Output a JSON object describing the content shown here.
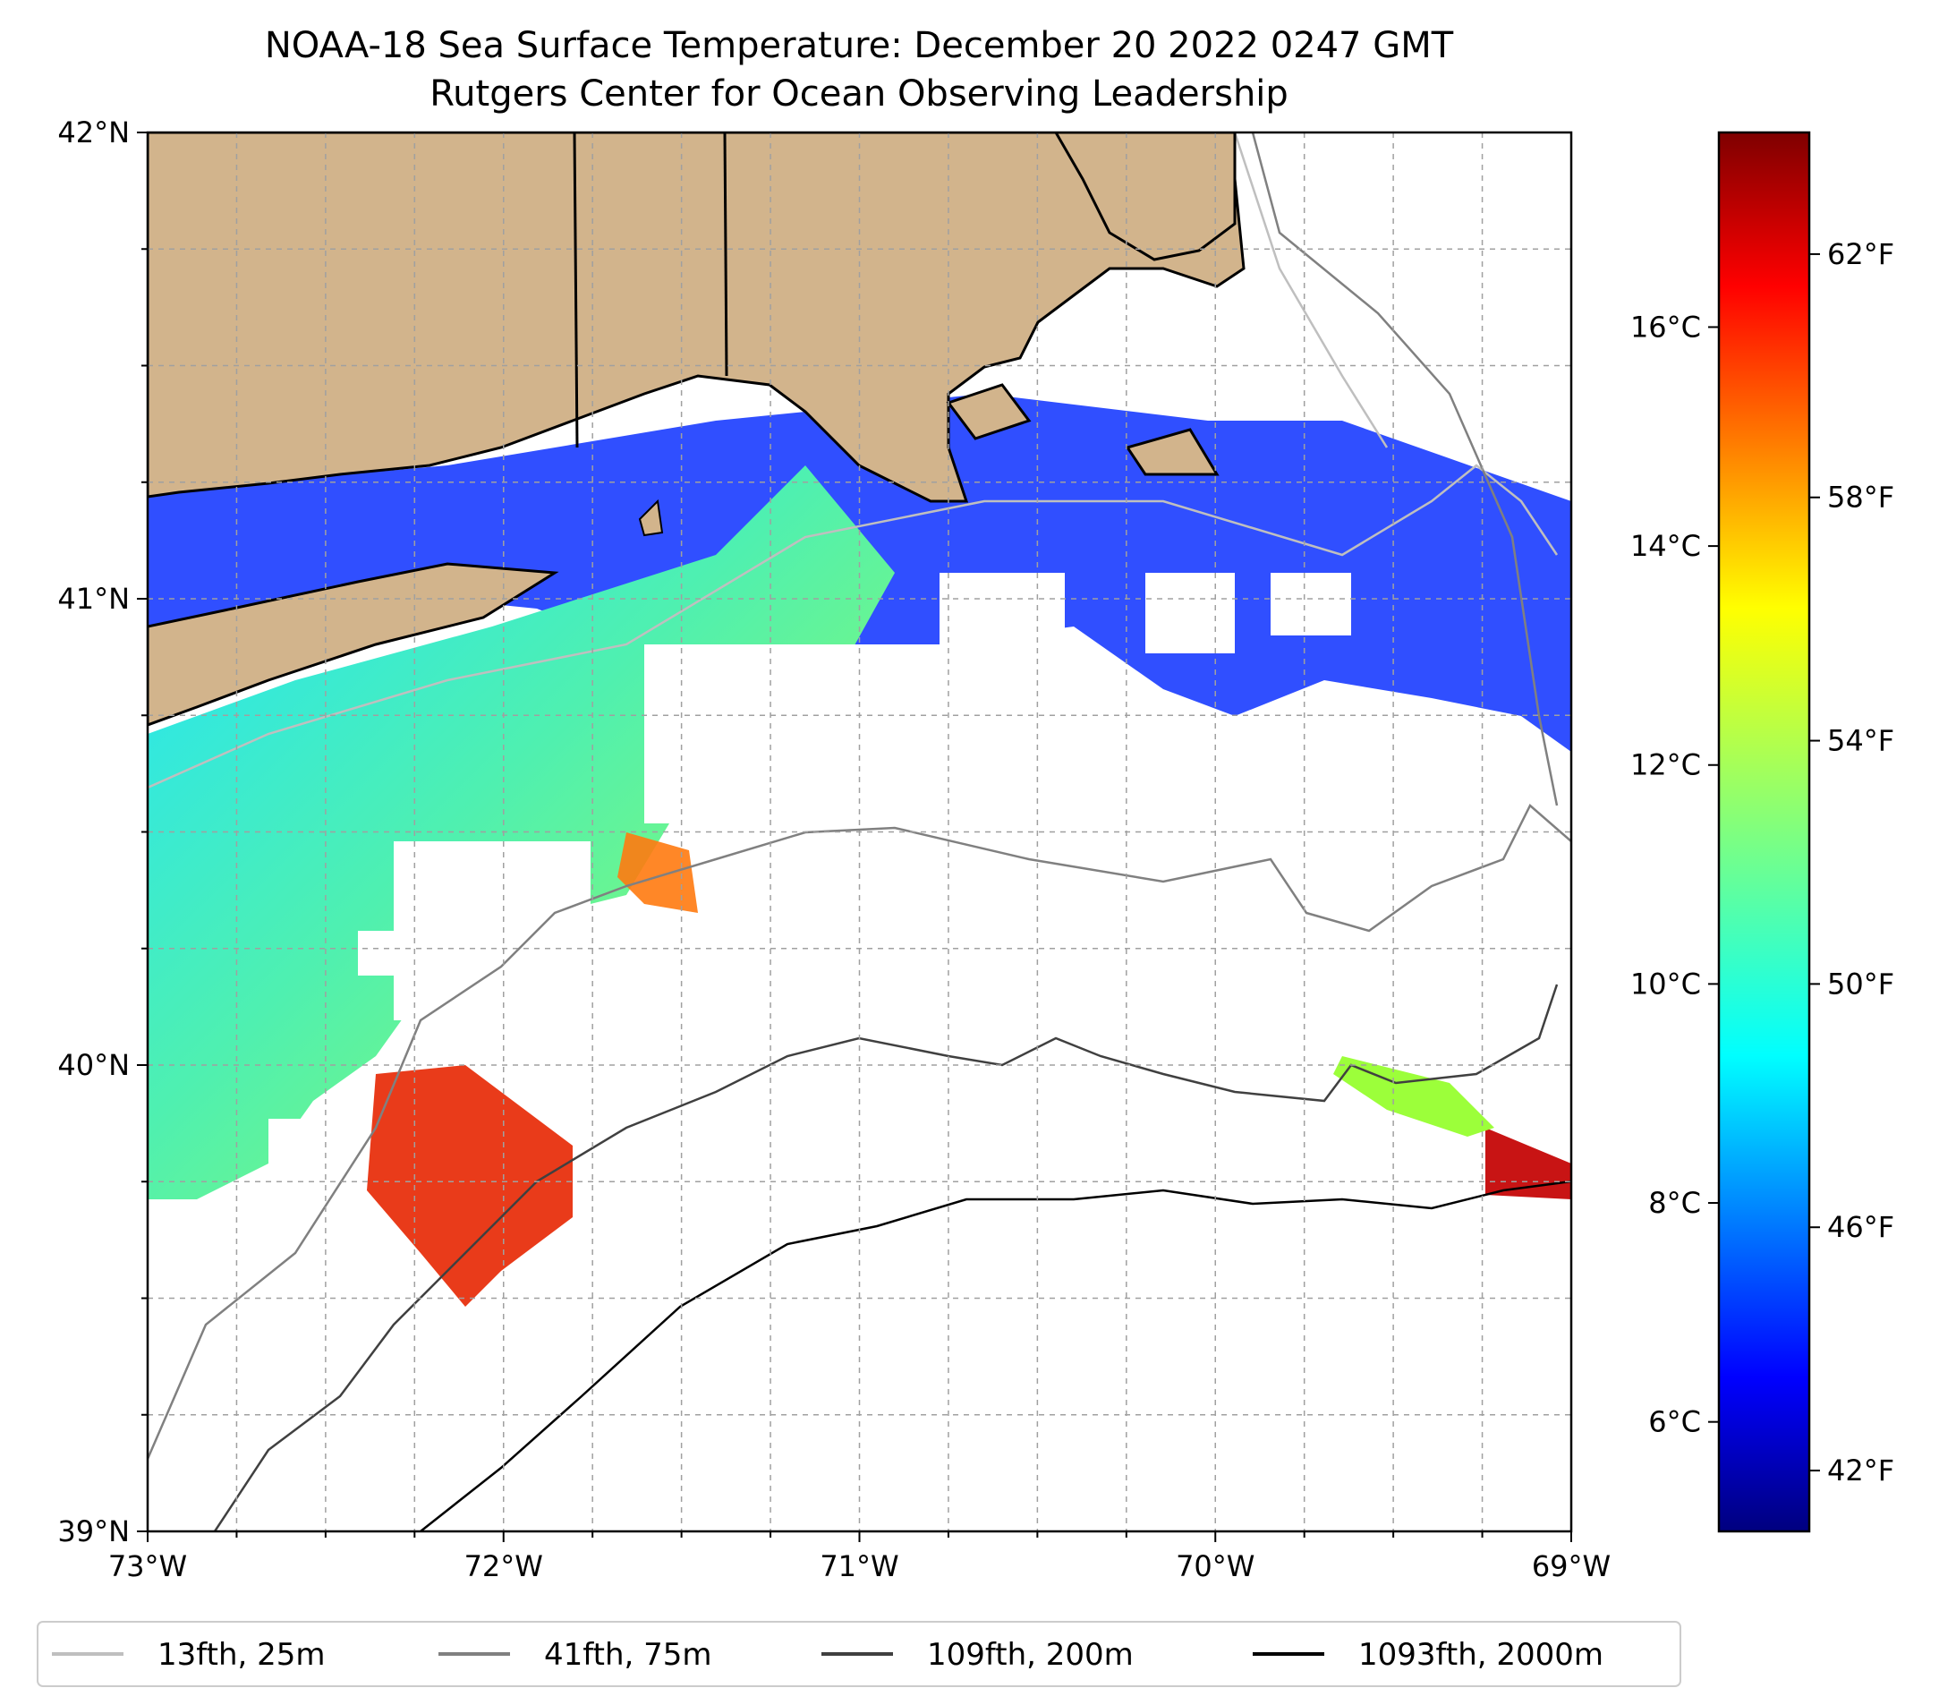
{
  "title": {
    "line1": "NOAA-18 Sea Surface Temperature: December 20 2022 0247 GMT",
    "line2": "Rutgers Center for Ocean Observing Leadership"
  },
  "map": {
    "lon_range": [
      -73,
      -69
    ],
    "lat_range": [
      39,
      42
    ],
    "x_ticks": [
      "73°W",
      "72°W",
      "71°W",
      "70°W",
      "69°W"
    ],
    "y_ticks": [
      "42°N",
      "41°N",
      "40°N",
      "39°N"
    ],
    "gridlines": true,
    "land_color": "#d2b48c",
    "ocean_missing_color": "#ffffff"
  },
  "colorbar": {
    "colormap": "jet",
    "range_f": [
      41,
      64
    ],
    "celsius_ticks": [
      "16°C",
      "14°C",
      "12°C",
      "10°C",
      "8°C",
      "6°C"
    ],
    "fahrenheit_ticks": [
      "62°F",
      "58°F",
      "54°F",
      "50°F",
      "46°F",
      "42°F"
    ]
  },
  "legend": {
    "placement": "bottom",
    "items": [
      {
        "label": "13fth, 25m",
        "color": "#bfbfbf"
      },
      {
        "label": "41fth, 75m",
        "color": "#808080"
      },
      {
        "label": "109fth, 200m",
        "color": "#404040"
      },
      {
        "label": "1093fth, 2000m",
        "color": "#000000"
      }
    ]
  }
}
